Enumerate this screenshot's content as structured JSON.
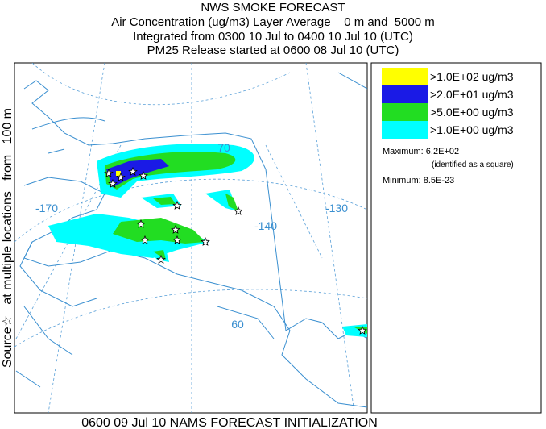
{
  "header": {
    "title": "NWS SMOKE FORECAST",
    "lines": [
      "Air Concentration (ug/m3) Layer Average    0 m and  5000 m",
      "Integrated from 0300 10 Jul to 0400 10 Jul 10 (UTC)",
      "PM25 Release started at 0600 08 Jul 10 (UTC)"
    ]
  },
  "side_label": "Source☆   at multiple locations   from   100 m",
  "map": {
    "labels": [
      "-170",
      "70",
      "-140",
      "-130",
      "60"
    ]
  },
  "legend": {
    "items": [
      {
        "label": ">1.0E+02 ug/m3",
        "color": "#ffff00"
      },
      {
        "label": ">2.0E+01 ug/m3",
        "color": "#1a1ae6"
      },
      {
        "label": ">5.0E+00 ug/m3",
        "color": "#22dd22"
      },
      {
        "label": ">1.0E+00 ug/m3",
        "color": "#00ffff"
      }
    ],
    "maximum": "Maximum: 6.2E+02",
    "maximum_note": "(identified as a square)",
    "minimum": "Minimum: 8.5E-23"
  },
  "footer": "0600 09 Jul 10 NAMS FORECAST INITIALIZATION"
}
